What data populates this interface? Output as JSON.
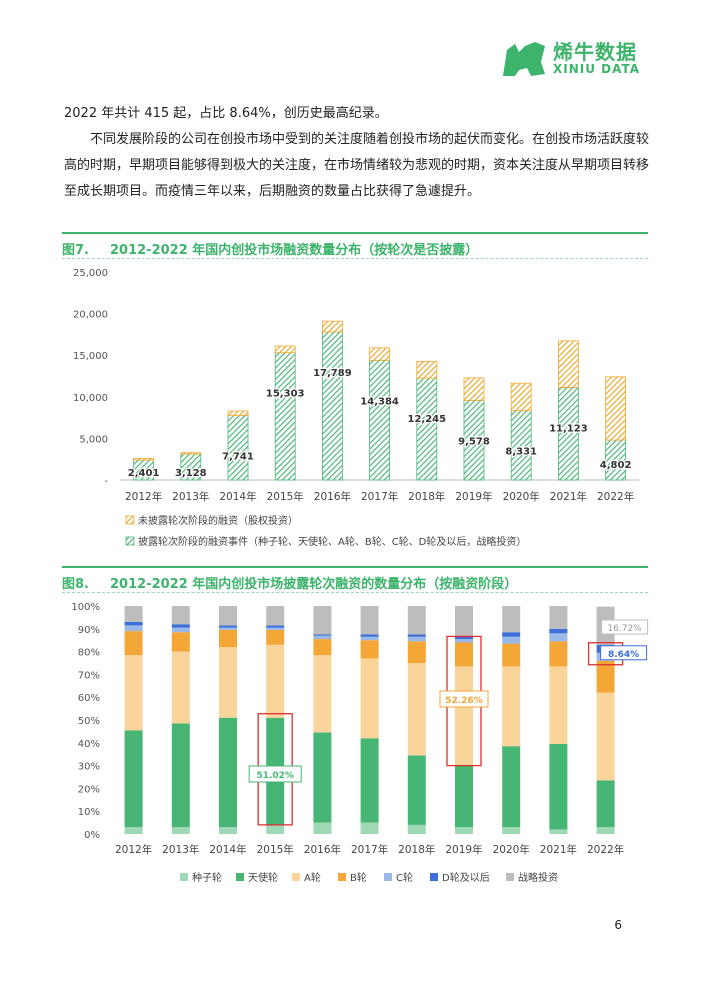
{
  "brand": {
    "cn": "烯牛数据",
    "en": "XINIU DATA"
  },
  "text": {
    "line1": "2022 年共计 415 起，占比 8.64%，创历史最高纪录。",
    "para2": "不同发展阶段的公司在创投市场中受到的关注度随着创投市场的起伏而变化。在创投市场活跃度较高的时期，早期项目能够得到极大的关注度，在市场情绪较为悲观的时期，资本关注度从早期项目转移至成长期项目。而疫情三年以来，后期融资的数量占比获得了急遽提升。"
  },
  "fig7": {
    "num": "图7.",
    "title": "2012-2022 年国内创投市场融资数量分布（按轮次是否披露）"
  },
  "fig8": {
    "num": "图8.",
    "title": "2012-2022 年国内创投市场披露轮次融资的数量分布（按融资阶段）"
  },
  "page_number": "6",
  "colors": {
    "brand_green": "#3db36b",
    "hatch_green": "#4cb878",
    "hatch_orange": "#f0a830"
  },
  "chart_data": [
    {
      "type": "bar",
      "stacked": true,
      "categories": [
        "2012年",
        "2013年",
        "2014年",
        "2015年",
        "2016年",
        "2017年",
        "2018年",
        "2019年",
        "2020年",
        "2021年",
        "2022年"
      ],
      "series": [
        {
          "name": "披露轮次阶段的融资事件（种子轮、天使轮、A轮、B轮、C轮、D轮及以后，战略投资）",
          "values": [
            2401,
            3128,
            7741,
            15303,
            17789,
            14384,
            12245,
            9578,
            8331,
            11123,
            4802
          ],
          "labels": [
            "2,401",
            "3,128",
            "7,741",
            "15,303",
            "17,789",
            "14,384",
            "12,245",
            "9,578",
            "8,331",
            "11,123",
            "4,802"
          ]
        },
        {
          "name": "未披露轮次阶段的融资（股权投资）",
          "values": [
            200,
            150,
            550,
            800,
            1300,
            1500,
            2000,
            2700,
            3300,
            5600,
            7600
          ]
        }
      ],
      "ylim": [
        0,
        25000
      ],
      "yticks": [
        "-",
        "5,000",
        "10,000",
        "15,000",
        "20,000",
        "25,000"
      ],
      "legend": "bottom-left",
      "hatched": true
    },
    {
      "type": "bar",
      "stacked": true,
      "percent": true,
      "categories": [
        "2012年",
        "2013年",
        "2014年",
        "2015年",
        "2016年",
        "2017年",
        "2018年",
        "2019年",
        "2020年",
        "2021年",
        "2022年"
      ],
      "series": [
        {
          "name": "种子轮",
          "color": "#9fd8b5",
          "values": [
            3,
            3,
            3,
            4,
            5,
            5,
            4,
            3,
            3,
            2,
            3
          ]
        },
        {
          "name": "天使轮",
          "color": "#47b675",
          "values": [
            42.5,
            45.5,
            48,
            47,
            39.5,
            37,
            30.5,
            27,
            35.5,
            37.5,
            20.5
          ]
        },
        {
          "name": "A轮",
          "color": "#f9d49b",
          "values": [
            33,
            31.5,
            31,
            32,
            34,
            35,
            40.5,
            43.5,
            35,
            34,
            38.5
          ]
        },
        {
          "name": "B轮",
          "color": "#f4a637",
          "values": [
            10.5,
            8.5,
            7.5,
            6.5,
            7,
            8,
            9.5,
            10.5,
            10,
            11,
            14
          ]
        },
        {
          "name": "C轮",
          "color": "#9ab9e9",
          "values": [
            2.5,
            2,
            1,
            1,
            1.5,
            1.5,
            2,
            1.5,
            3,
            3.5,
            3.5
          ]
        },
        {
          "name": "D轮及以后",
          "color": "#3d6fd8",
          "values": [
            1.5,
            1.5,
            1,
            1,
            0.5,
            1,
            1,
            1,
            2,
            2,
            3.5
          ]
        },
        {
          "name": "战略投资",
          "color": "#bdbdbd",
          "values": [
            7,
            8,
            8.5,
            8.5,
            12.5,
            12.5,
            12.5,
            13.5,
            11.5,
            10,
            16.72
          ]
        }
      ],
      "yticks": [
        "0%",
        "10%",
        "20%",
        "30%",
        "40%",
        "50%",
        "60%",
        "70%",
        "80%",
        "90%",
        "100%"
      ],
      "annotations": [
        {
          "text": "51.02%",
          "category": "2015年"
        },
        {
          "text": "52.26%",
          "category": "2019年"
        },
        {
          "text": "8.64%",
          "category": "2022年"
        },
        {
          "text": "16.72%",
          "category": "2022年"
        }
      ],
      "legend": "bottom"
    }
  ]
}
